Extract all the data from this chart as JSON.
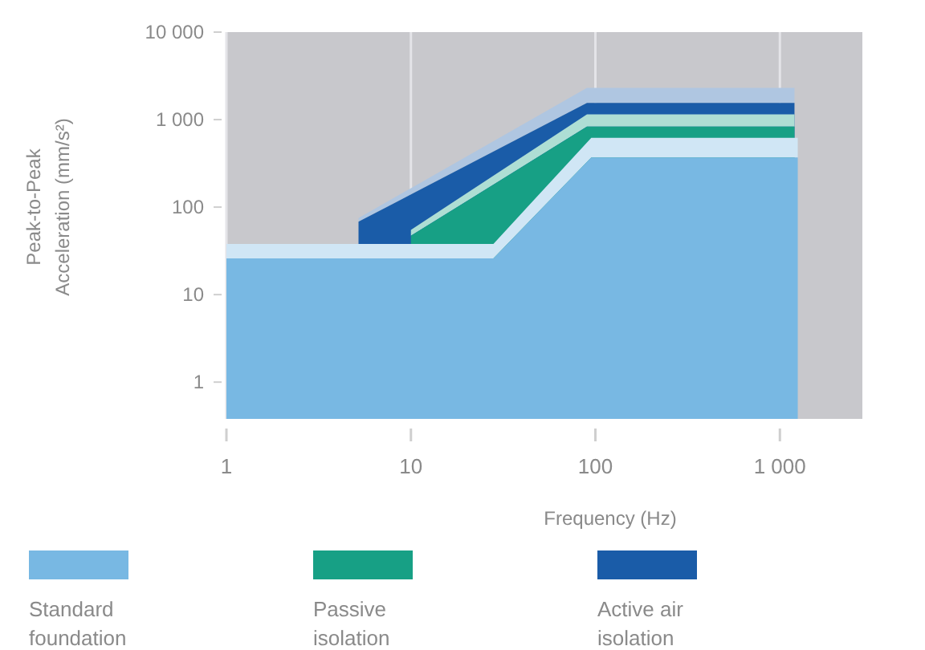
{
  "chart_data": {
    "type": "area",
    "xlabel": "Frequency (Hz)",
    "ylabel": "Peak-to-Peak\nAcceleration (mm/s²)",
    "log": "xy",
    "grid": "x",
    "legend": "bottom",
    "xlim": [
      1,
      2800
    ],
    "ylim": [
      0.38,
      10000
    ],
    "xticks": [
      1,
      10,
      100,
      {
        "value": 1000,
        "label": "1 000"
      }
    ],
    "yticks": [
      1,
      10,
      100,
      {
        "value": 1000,
        "label": "1 000"
      },
      {
        "value": 10000,
        "label": "10 000"
      }
    ],
    "series": [
      {
        "name": "Active air isolation",
        "color": "#1a5ca8",
        "x": [
          5.2,
          90,
          1200
        ],
        "values": [
          68,
          1550,
          1550
        ],
        "lower": [
          68,
          1550,
          1550
        ],
        "upper": [
          75,
          2300,
          2300
        ]
      },
      {
        "name": "Passive isolation",
        "color": "#17a085",
        "x": [
          10,
          90,
          1200
        ],
        "values": [
          47,
          830,
          830
        ],
        "lower": [
          47,
          830,
          830
        ],
        "upper": [
          55,
          1150,
          1150
        ]
      },
      {
        "name": "Standard foundation",
        "color": "#78b8e3",
        "x": [
          1,
          28,
          95,
          1250
        ],
        "values": [
          26,
          26,
          370,
          370
        ],
        "lower": [
          26,
          26,
          370,
          370
        ],
        "upper": [
          38,
          38,
          620,
          620
        ]
      }
    ]
  }
}
